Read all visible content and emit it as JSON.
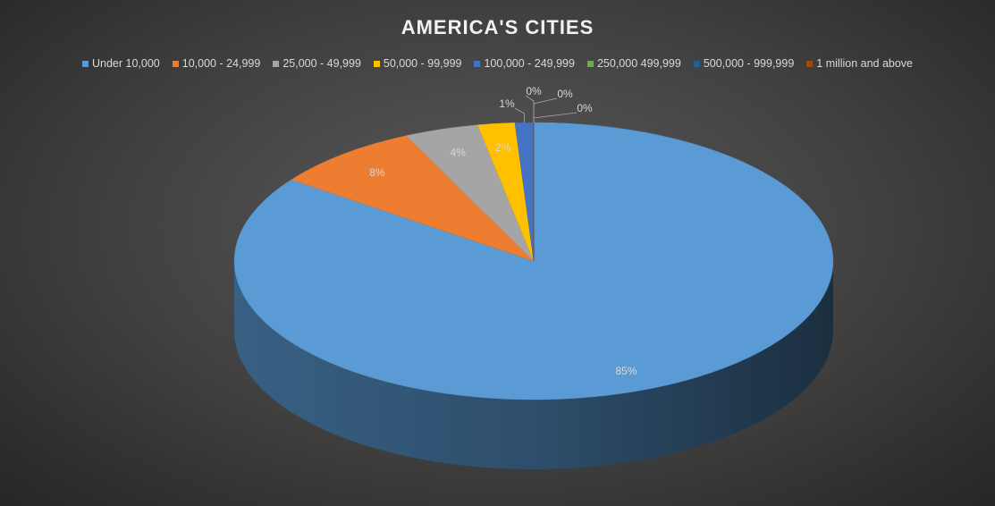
{
  "chart_data": {
    "type": "pie",
    "title": "AMERICA'S CITIES",
    "categories": [
      "Under 10,000",
      "10,000 - 24,999",
      "25,000 - 49,999",
      "50,000 - 99,999",
      "100,000 - 249,999",
      "250,000 499,999",
      "500,000 - 999,999",
      "1 million and above"
    ],
    "values": [
      85,
      8,
      4,
      2,
      1,
      0,
      0,
      0
    ],
    "value_labels": [
      "85%",
      "8%",
      "4%",
      "2%",
      "1%",
      "0%",
      "0%",
      "0%"
    ],
    "colors": [
      "#5b9bd5",
      "#ed7d31",
      "#a5a5a5",
      "#ffc000",
      "#4472c4",
      "#70ad47",
      "#255e91",
      "#9e480e"
    ],
    "legend_position": "top"
  }
}
